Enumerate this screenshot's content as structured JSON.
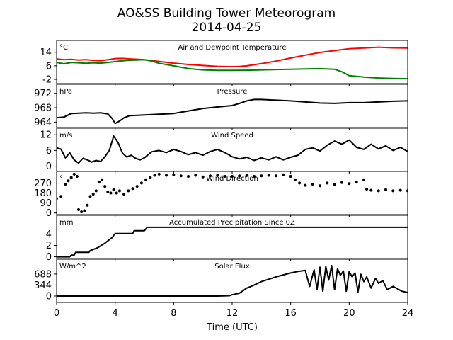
{
  "figure": {
    "title_line1": "AO&SS Building Tower Meteorogram",
    "title_line2": "2014-04-25",
    "xlabel": "Time (UTC)",
    "x_ticks": [
      0,
      4,
      8,
      12,
      16,
      20,
      24
    ],
    "xlim": [
      0,
      24
    ]
  },
  "chart_data": [
    {
      "type": "line",
      "title": "Air and Dewpoint Temperature",
      "unit": "°C",
      "ylim": [
        -4.5,
        21
      ],
      "y_ticks": [
        -2,
        6,
        14
      ],
      "series": [
        {
          "color": "#ff0000",
          "x": [
            0,
            0.5,
            1,
            1.5,
            2,
            2.5,
            3,
            3.5,
            4,
            4.5,
            5,
            5.5,
            6,
            6.5,
            7,
            7.5,
            8,
            9,
            10,
            11,
            12,
            12.5,
            13,
            14,
            15,
            16,
            17,
            18,
            19,
            20,
            21,
            22,
            23,
            24
          ],
          "y": [
            10,
            9.6,
            9.8,
            9.4,
            9.6,
            9.2,
            9,
            9.6,
            10.3,
            10.4,
            10.1,
            9.9,
            9.6,
            9.1,
            8.6,
            8.1,
            7.6,
            6.8,
            6.2,
            5.7,
            5.5,
            5.6,
            6.0,
            7.3,
            8.8,
            10.6,
            12.3,
            13.9,
            15.0,
            16.1,
            16.5,
            17.0,
            16.6,
            16.5
          ]
        },
        {
          "color": "#008000",
          "x": [
            0,
            0.5,
            1,
            1.5,
            2,
            2.5,
            3,
            3.5,
            4,
            4.5,
            5,
            5.5,
            6,
            6.5,
            7,
            8,
            9,
            10,
            11,
            12,
            13,
            14,
            15,
            16,
            17,
            18,
            19,
            19.5,
            20,
            21,
            22,
            23,
            24
          ],
          "y": [
            8,
            7.2,
            8,
            7.8,
            7.5,
            7.8,
            7.6,
            8,
            8.5,
            9,
            9.3,
            9.4,
            9.6,
            8.8,
            7.5,
            6.0,
            4.4,
            3.6,
            3.3,
            3.3,
            3.4,
            3.6,
            3.8,
            4.0,
            4.2,
            4.3,
            4.0,
            2.5,
            0.2,
            -0.6,
            -1.2,
            -1.5,
            -1.6
          ]
        }
      ]
    },
    {
      "type": "line",
      "title": "Pressure",
      "unit": "hPa",
      "ylim": [
        962.5,
        974.5
      ],
      "y_ticks": [
        964,
        968,
        972
      ],
      "series": [
        {
          "color": "#000000",
          "x": [
            0,
            0.5,
            1,
            1.5,
            2,
            2.5,
            3,
            3.5,
            3.8,
            4,
            4.3,
            4.6,
            5,
            5.5,
            6,
            7,
            8,
            9,
            10,
            11,
            12,
            12.5,
            13,
            13.5,
            14,
            15,
            16,
            17,
            18,
            19,
            20,
            21,
            22,
            23,
            24
          ],
          "y": [
            965.2,
            965.4,
            966.4,
            966.5,
            966.6,
            966.5,
            966.6,
            966.3,
            965.0,
            963.6,
            964.3,
            965.2,
            965.8,
            965.9,
            966.0,
            966.2,
            966.4,
            967.1,
            967.8,
            968.2,
            968.6,
            969.2,
            969.9,
            970.3,
            970.3,
            970.1,
            969.9,
            969.6,
            969.3,
            969.2,
            969.4,
            969.4,
            969.6,
            969.8,
            969.9
          ]
        }
      ]
    },
    {
      "type": "line",
      "title": "Wind Speed",
      "unit": "m/s",
      "ylim": [
        -2,
        14.5
      ],
      "y_ticks": [
        0,
        6,
        12
      ],
      "series": [
        {
          "color": "#000000",
          "x": [
            0,
            0.3,
            0.6,
            0.9,
            1.2,
            1.5,
            1.8,
            2.1,
            2.4,
            2.7,
            3,
            3.3,
            3.6,
            3.9,
            4.2,
            4.5,
            4.8,
            5.1,
            5.4,
            5.7,
            6,
            6.5,
            7,
            7.5,
            8,
            8.5,
            9,
            9.5,
            10,
            10.5,
            11,
            11.5,
            12,
            12.5,
            13,
            13.5,
            14,
            14.5,
            15,
            15.5,
            16,
            16.5,
            17,
            17.5,
            18,
            18.5,
            19,
            19.5,
            20,
            20.5,
            21,
            21.5,
            22,
            22.5,
            23,
            23.5,
            24
          ],
          "y": [
            7,
            6.5,
            3.2,
            5.1,
            2.4,
            1.2,
            3,
            2.4,
            1.6,
            2.2,
            1.8,
            3.6,
            6,
            11.5,
            9,
            5,
            3.5,
            4.2,
            3,
            2.4,
            3.2,
            5.5,
            6,
            5.2,
            6.4,
            5.6,
            4.4,
            5.2,
            4.2,
            5.6,
            6.4,
            5.2,
            3.6,
            2.8,
            3.4,
            2.2,
            3.2,
            2.4,
            3.6,
            2.4,
            3.4,
            4.2,
            6.4,
            7,
            5.8,
            8,
            9.6,
            8.4,
            10,
            7.2,
            6.4,
            8.4,
            6.6,
            7.8,
            6,
            7.2,
            5.6
          ]
        }
      ]
    },
    {
      "type": "scatter",
      "title": "Wind Direction",
      "unit": "°",
      "ylim": [
        -15,
        375
      ],
      "y_ticks": [
        0,
        90,
        180,
        270
      ],
      "series": [
        {
          "color": "#000000",
          "x": [
            0,
            0.3,
            0.6,
            0.8,
            1.0,
            1.2,
            1.4,
            1.5,
            1.7,
            1.9,
            2.1,
            2.3,
            2.5,
            2.7,
            2.9,
            3.1,
            3.3,
            3.5,
            3.7,
            3.9,
            4.1,
            4.3,
            4.6,
            4.9,
            5.2,
            5.5,
            5.8,
            6.1,
            6.4,
            6.7,
            7.0,
            7.5,
            8,
            8.5,
            9,
            9.5,
            10,
            10.5,
            11,
            11.5,
            12,
            12.5,
            13,
            13.5,
            14,
            14.5,
            15,
            15.5,
            16,
            16.3,
            16.6,
            17,
            17.5,
            18,
            18.5,
            19,
            19.5,
            20,
            20.5,
            21,
            21.2,
            21.5,
            22,
            22.5,
            23,
            23.5,
            24
          ],
          "y": [
            130,
            150,
            260,
            290,
            320,
            350,
            330,
            30,
            10,
            20,
            70,
            150,
            170,
            200,
            280,
            300,
            240,
            190,
            180,
            210,
            180,
            200,
            170,
            200,
            220,
            240,
            270,
            300,
            320,
            340,
            350,
            340,
            345,
            335,
            330,
            340,
            325,
            335,
            340,
            330,
            330,
            335,
            340,
            330,
            335,
            340,
            335,
            345,
            330,
            300,
            270,
            250,
            260,
            245,
            270,
            255,
            275,
            265,
            280,
            300,
            215,
            205,
            200,
            210,
            200,
            205,
            200
          ]
        }
      ]
    },
    {
      "type": "line",
      "title": "Accumulated Precipitation Since 0Z",
      "unit": "mm",
      "ylim": [
        -0.3,
        7.3
      ],
      "y_ticks": [
        0,
        2,
        4
      ],
      "series": [
        {
          "color": "#000000",
          "x": [
            0,
            0.9,
            1.0,
            1.2,
            1.3,
            2.2,
            2.3,
            2.8,
            3.3,
            3.8,
            4.0,
            5.2,
            5.3,
            6.0,
            6.2,
            24
          ],
          "y": [
            0,
            0,
            0.3,
            0.3,
            0.8,
            0.8,
            1.1,
            1.6,
            2.4,
            3.4,
            4.1,
            4.1,
            4.6,
            4.6,
            5.2,
            5.2
          ]
        }
      ]
    },
    {
      "type": "line",
      "title": "Solar Flux",
      "unit": "W/m^2",
      "ylim": [
        -200,
        1150
      ],
      "y_ticks": [
        0,
        344,
        688
      ],
      "series": [
        {
          "color": "#000000",
          "x": [
            0,
            6,
            11,
            11.8,
            12,
            12.5,
            13,
            13.4,
            14,
            15,
            16,
            16.5,
            17,
            17.3,
            17.6,
            17.8,
            18,
            18.2,
            18.4,
            18.6,
            18.8,
            19,
            19.2,
            19.4,
            19.6,
            19.8,
            20,
            20.2,
            20.4,
            20.6,
            20.8,
            21,
            21.2,
            21.5,
            21.8,
            22,
            22.3,
            22.6,
            23,
            23.3,
            23.6,
            24
          ],
          "y": [
            0,
            0,
            0,
            10,
            40,
            90,
            250,
            320,
            450,
            600,
            720,
            770,
            800,
            300,
            820,
            200,
            900,
            150,
            920,
            500,
            950,
            200,
            850,
            650,
            780,
            150,
            760,
            600,
            720,
            120,
            680,
            450,
            600,
            250,
            550,
            400,
            480,
            200,
            300,
            230,
            150,
            110
          ]
        }
      ]
    }
  ]
}
